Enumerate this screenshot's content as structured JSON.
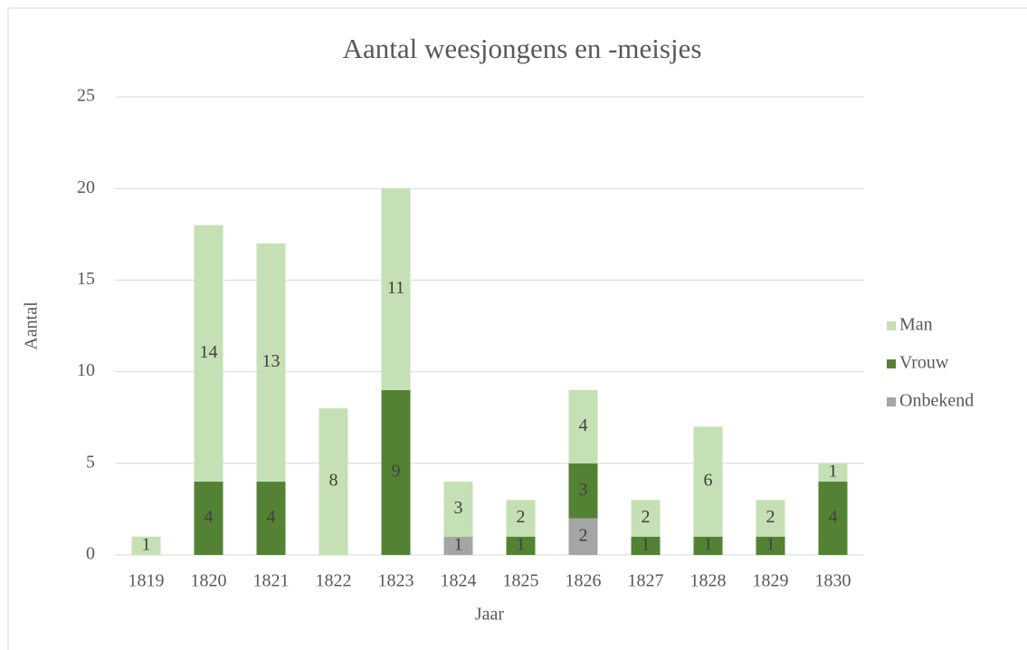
{
  "chart_data": {
    "type": "stacked_bar",
    "title": "Aantal weesjongens en -meisjes",
    "x_label": "Jaar",
    "y_label": "Aantal",
    "categories": [
      "1819",
      "1820",
      "1821",
      "1822",
      "1823",
      "1824",
      "1825",
      "1826",
      "1827",
      "1828",
      "1829",
      "1830"
    ],
    "series": [
      {
        "name": "Onbekend",
        "color": "#a5a5a5",
        "values": [
          null,
          null,
          null,
          null,
          null,
          1,
          null,
          2,
          null,
          null,
          null,
          null
        ]
      },
      {
        "name": "Vrouw",
        "color": "#548235",
        "values": [
          null,
          4,
          4,
          null,
          9,
          null,
          1,
          3,
          1,
          1,
          1,
          4
        ]
      },
      {
        "name": "Man",
        "color": "#c5e0b4",
        "values": [
          1,
          14,
          13,
          8,
          11,
          3,
          2,
          4,
          2,
          6,
          2,
          1
        ]
      }
    ],
    "ylim": [
      0,
      25
    ],
    "yticks": [
      0,
      5,
      10,
      15,
      20,
      25
    ],
    "grid": true,
    "legend": "right"
  }
}
